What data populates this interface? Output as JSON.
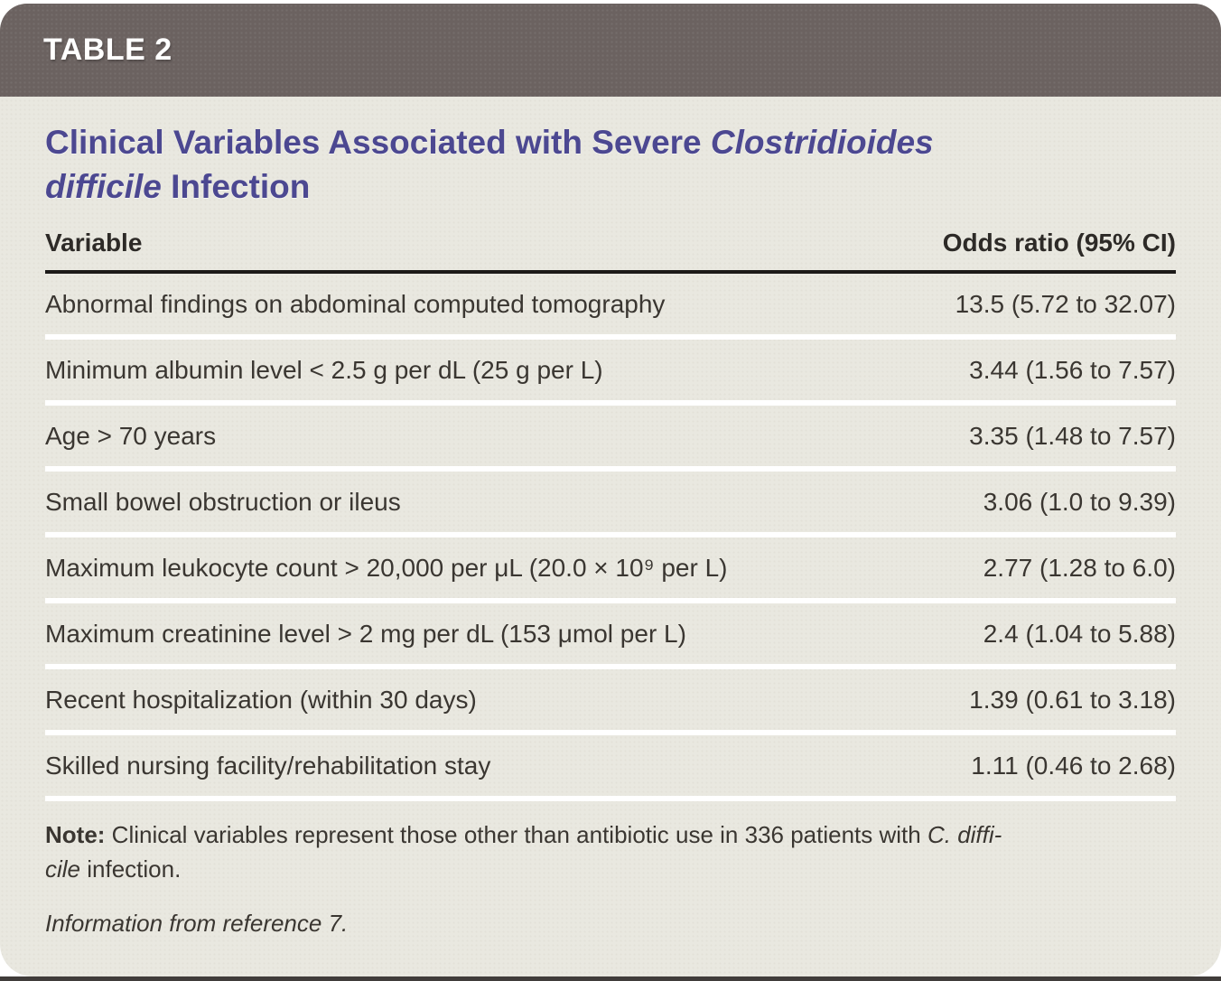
{
  "header": {
    "table_label": "TABLE 2"
  },
  "title": {
    "part1": "Clinical Variables Associated with Severe ",
    "italic_line1": "Clostridioides",
    "italic_line2": "difficile",
    "part2": " Infection"
  },
  "table": {
    "columns": {
      "variable": "Variable",
      "odds": "Odds ratio (95% CI)"
    },
    "rows": [
      {
        "variable": "Abnormal findings on abdominal computed tomography",
        "odds": "13.5 (5.72 to 32.07)"
      },
      {
        "variable": "Minimum albumin level < 2.5 g per dL (25 g per L)",
        "odds": "3.44 (1.56 to 7.57)"
      },
      {
        "variable": "Age > 70 years",
        "odds": "3.35 (1.48 to 7.57)"
      },
      {
        "variable": "Small bowel obstruction or ileus",
        "odds": "3.06 (1.0 to 9.39)"
      },
      {
        "variable": "Maximum leukocyte count > 20,000 per μL (20.0 × 10⁹ per L)",
        "odds": "2.77 (1.28 to 6.0)"
      },
      {
        "variable": "Maximum creatinine level > 2 mg per dL (153 μmol per L)",
        "odds": "2.4 (1.04 to 5.88)"
      },
      {
        "variable": "Recent hospitalization (within 30 days)",
        "odds": "1.39 (0.61 to 3.18)"
      },
      {
        "variable": "Skilled nursing facility/rehabilitation stay",
        "odds": "1.11 (0.46 to 2.68)"
      }
    ]
  },
  "note": {
    "label": "Note:",
    "body": " Clinical variables represent those other than antibiotic use in 336 patients with ",
    "species_line1": "C. diffi-",
    "species_line2": "cile",
    "tail": " infection."
  },
  "source": "Information from reference 7.",
  "colors": {
    "header_bar": "#6b6260",
    "card_background": "#e9e8e0",
    "title_purple": "#4c4891",
    "header_rule_black": "#1c1a18",
    "row_separator_white": "#ffffff",
    "body_text": "#3a3631"
  }
}
